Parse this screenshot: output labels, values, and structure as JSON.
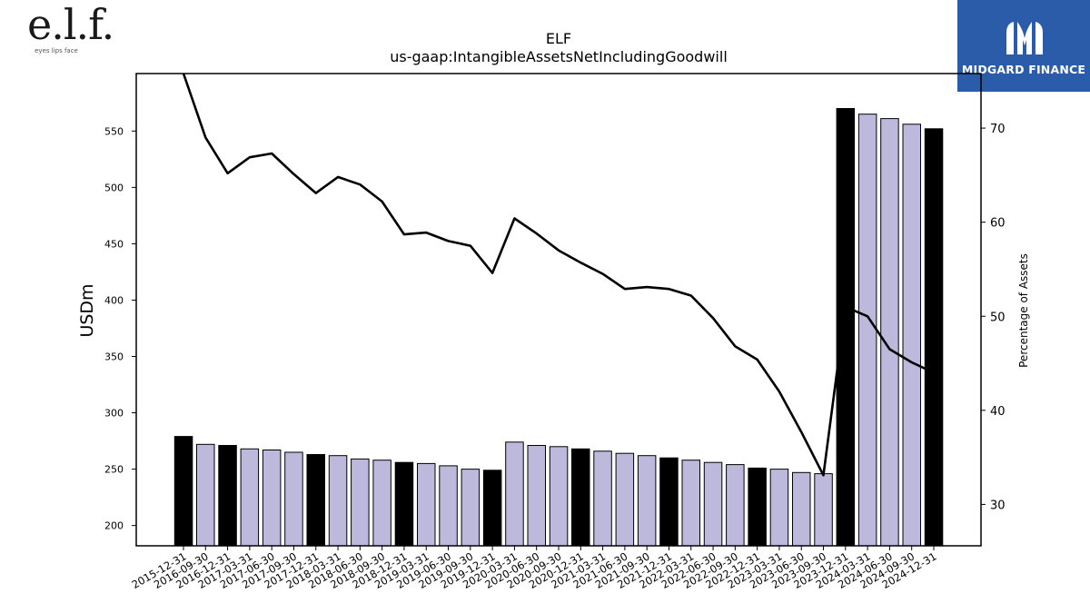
{
  "brand": {
    "left_logo_text": "e.l.f.",
    "left_logo_tagline": "eyes lips face",
    "right_logo_text": "MIDGARD FINANCE",
    "right_logo_bg": "#2a5caa"
  },
  "chart_data": {
    "type": "bar",
    "title": "ELF",
    "subtitle": "us-gaap:IntangibleAssetsNetIncludingGoodwill",
    "ylabel": "USDm",
    "y2label": "Percentage of Assets",
    "ylim": [
      182,
      601
    ],
    "y2lim": [
      25.6,
      75.8
    ],
    "yticks": [
      200,
      250,
      300,
      350,
      400,
      450,
      500,
      550
    ],
    "y2ticks": [
      30,
      40,
      50,
      60,
      70
    ],
    "categories": [
      "2015-12-31",
      "2016-09-30",
      "2016-12-31",
      "2017-03-31",
      "2017-06-30",
      "2017-09-30",
      "2017-12-31",
      "2018-03-31",
      "2018-06-30",
      "2018-09-30",
      "2018-12-31",
      "2019-03-31",
      "2019-06-30",
      "2019-09-30",
      "2019-12-31",
      "2020-03-31",
      "2020-06-30",
      "2020-09-30",
      "2020-12-31",
      "2021-03-31",
      "2021-06-30",
      "2021-09-30",
      "2021-12-31",
      "2022-03-31",
      "2022-06-30",
      "2022-09-30",
      "2022-12-31",
      "2023-03-31",
      "2023-06-30",
      "2023-09-30",
      "2023-12-31",
      "2024-03-31",
      "2024-06-30",
      "2024-09-30",
      "2024-12-31"
    ],
    "series": [
      {
        "values": [
          279,
          272,
          271,
          268,
          267,
          265,
          263,
          262,
          259,
          258,
          256,
          255,
          253,
          250,
          249,
          274,
          271,
          270,
          268,
          266,
          264,
          262,
          260,
          258,
          256,
          254,
          251,
          250,
          247,
          246,
          570,
          565,
          561,
          556,
          552
        ],
        "highlight": [
          true,
          false,
          true,
          false,
          false,
          false,
          true,
          false,
          false,
          false,
          true,
          false,
          false,
          false,
          true,
          false,
          false,
          false,
          true,
          false,
          false,
          false,
          true,
          false,
          false,
          false,
          true,
          false,
          false,
          false,
          true,
          false,
          false,
          false,
          true
        ],
        "highlight_color": "#000000",
        "color": "#bdb9dc"
      },
      {
        "axis": "right",
        "color": "#000000",
        "values": [
          75.8,
          69.0,
          65.2,
          66.9,
          67.3,
          65.1,
          63.1,
          64.8,
          64.0,
          62.2,
          58.7,
          58.9,
          58.0,
          57.5,
          54.6,
          60.4,
          58.8,
          57.0,
          55.7,
          54.5,
          52.9,
          53.1,
          52.9,
          52.2,
          49.8,
          46.8,
          45.4,
          42.0,
          37.7,
          33.1,
          51.0,
          50.0,
          46.5,
          45.1,
          44.0
        ]
      }
    ],
    "grid": false
  }
}
